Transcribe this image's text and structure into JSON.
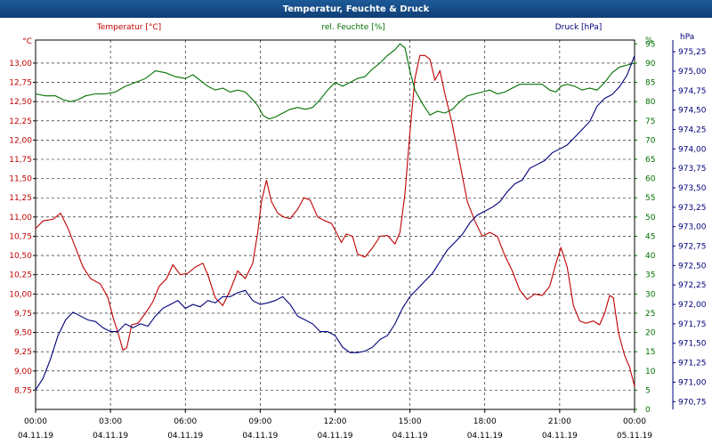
{
  "window": {
    "title": "Temperatur, Feuchte & Druck"
  },
  "chart_data": {
    "type": "line",
    "legend": "top",
    "grid": true,
    "x_ticks": [
      {
        "hours": 0,
        "time": "00:00",
        "date": "04.11.19"
      },
      {
        "hours": 3,
        "time": "03:00",
        "date": "04.11.19"
      },
      {
        "hours": 6,
        "time": "06:00",
        "date": "04.11.19"
      },
      {
        "hours": 9,
        "time": "09:00",
        "date": "04.11.19"
      },
      {
        "hours": 12,
        "time": "12:00",
        "date": "04.11.19"
      },
      {
        "hours": 15,
        "time": "15:00",
        "date": "04.11.19"
      },
      {
        "hours": 18,
        "time": "18:00",
        "date": "04.11.19"
      },
      {
        "hours": 21,
        "time": "21:00",
        "date": "04.11.19"
      },
      {
        "hours": 24,
        "time": "00:00",
        "date": "05.11.19"
      }
    ],
    "axes": {
      "temperature": {
        "unit": "°C",
        "range": [
          8.5,
          13.3
        ],
        "color": "#c00000",
        "ticks": [
          "8,75",
          "9,00",
          "9,25",
          "9,50",
          "9,75",
          "10,00",
          "10,25",
          "10,50",
          "10,75",
          "11,00",
          "11,25",
          "11,50",
          "11,75",
          "12,00",
          "12,25",
          "12,50",
          "12,75",
          "13,00"
        ]
      },
      "humidity": {
        "unit": "%",
        "range": [
          0,
          96
        ],
        "color": "#007000",
        "ticks": [
          "0",
          "5",
          "10",
          "15",
          "20",
          "25",
          "30",
          "35",
          "40",
          "45",
          "50",
          "55",
          "60",
          "65",
          "70",
          "75",
          "80",
          "85",
          "90",
          "95"
        ]
      },
      "pressure": {
        "unit": "hPa",
        "range": [
          970.65,
          975.4
        ],
        "color": "#00007a",
        "ticks": [
          "970,75",
          "971,00",
          "971,25",
          "971,50",
          "971,75",
          "972,00",
          "972,25",
          "972,50",
          "972,75",
          "973,00",
          "973,25",
          "973,50",
          "973,75",
          "974,00",
          "974,25",
          "974,50",
          "974,75",
          "975,00",
          "975,25"
        ]
      }
    },
    "series": [
      {
        "name": "Temperatur [°C]",
        "axis": "temperature",
        "color": "#c00000",
        "points": [
          [
            0,
            10.85
          ],
          [
            0.3,
            10.95
          ],
          [
            0.7,
            10.97
          ],
          [
            1,
            11.05
          ],
          [
            1.3,
            10.85
          ],
          [
            1.6,
            10.6
          ],
          [
            1.9,
            10.35
          ],
          [
            2.2,
            10.2
          ],
          [
            2.6,
            10.13
          ],
          [
            2.9,
            9.95
          ],
          [
            3.1,
            9.7
          ],
          [
            3.3,
            9.5
          ],
          [
            3.5,
            9.27
          ],
          [
            3.65,
            9.3
          ],
          [
            3.85,
            9.6
          ],
          [
            4.1,
            9.62
          ],
          [
            4.4,
            9.75
          ],
          [
            4.7,
            9.9
          ],
          [
            4.95,
            10.1
          ],
          [
            5.25,
            10.2
          ],
          [
            5.5,
            10.38
          ],
          [
            5.8,
            10.25
          ],
          [
            6.1,
            10.27
          ],
          [
            6.4,
            10.35
          ],
          [
            6.7,
            10.4
          ],
          [
            6.9,
            10.25
          ],
          [
            7.2,
            9.95
          ],
          [
            7.5,
            9.85
          ],
          [
            7.8,
            10.05
          ],
          [
            8.1,
            10.3
          ],
          [
            8.4,
            10.2
          ],
          [
            8.7,
            10.4
          ],
          [
            8.9,
            10.8
          ],
          [
            9.05,
            11.2
          ],
          [
            9.25,
            11.48
          ],
          [
            9.45,
            11.2
          ],
          [
            9.7,
            11.05
          ],
          [
            9.95,
            11
          ],
          [
            10.2,
            10.98
          ],
          [
            10.5,
            11.1
          ],
          [
            10.75,
            11.25
          ],
          [
            11,
            11.22
          ],
          [
            11.3,
            11
          ],
          [
            11.6,
            10.95
          ],
          [
            11.85,
            10.92
          ],
          [
            12.05,
            10.8
          ],
          [
            12.25,
            10.67
          ],
          [
            12.45,
            10.78
          ],
          [
            12.7,
            10.75
          ],
          [
            12.9,
            10.52
          ],
          [
            13.2,
            10.48
          ],
          [
            13.5,
            10.6
          ],
          [
            13.8,
            10.75
          ],
          [
            14.1,
            10.76
          ],
          [
            14.4,
            10.65
          ],
          [
            14.6,
            10.8
          ],
          [
            14.8,
            11.3
          ],
          [
            15.0,
            12.1
          ],
          [
            15.2,
            12.8
          ],
          [
            15.4,
            13.1
          ],
          [
            15.6,
            13.1
          ],
          [
            15.8,
            13.05
          ],
          [
            16,
            12.78
          ],
          [
            16.2,
            12.9
          ],
          [
            16.4,
            12.6
          ],
          [
            16.7,
            12.2
          ],
          [
            17,
            11.7
          ],
          [
            17.3,
            11.2
          ],
          [
            17.6,
            10.95
          ],
          [
            17.9,
            10.75
          ],
          [
            18.2,
            10.8
          ],
          [
            18.5,
            10.75
          ],
          [
            18.8,
            10.5
          ],
          [
            19.1,
            10.3
          ],
          [
            19.4,
            10.05
          ],
          [
            19.7,
            9.93
          ],
          [
            20.0,
            10.0
          ],
          [
            20.3,
            9.98
          ],
          [
            20.6,
            10.1
          ],
          [
            20.85,
            10.4
          ],
          [
            21.05,
            10.6
          ],
          [
            21.3,
            10.35
          ],
          [
            21.55,
            9.85
          ],
          [
            21.8,
            9.65
          ],
          [
            22.05,
            9.62
          ],
          [
            22.35,
            9.65
          ],
          [
            22.6,
            9.6
          ],
          [
            22.8,
            9.75
          ],
          [
            23.0,
            9.98
          ],
          [
            23.15,
            9.95
          ],
          [
            23.35,
            9.5
          ],
          [
            23.6,
            9.2
          ],
          [
            23.8,
            9.05
          ],
          [
            24,
            8.8
          ]
        ]
      },
      {
        "name": "rel. Feuchte [%]",
        "axis": "humidity",
        "color": "#007000",
        "points": [
          [
            0,
            82
          ],
          [
            0.4,
            81.5
          ],
          [
            0.8,
            81.5
          ],
          [
            1.1,
            80.5
          ],
          [
            1.4,
            80
          ],
          [
            1.7,
            80.5
          ],
          [
            2,
            81.5
          ],
          [
            2.4,
            82
          ],
          [
            2.8,
            82
          ],
          [
            3.2,
            82.5
          ],
          [
            3.6,
            84
          ],
          [
            4,
            85
          ],
          [
            4.4,
            86
          ],
          [
            4.8,
            88
          ],
          [
            5.2,
            87.5
          ],
          [
            5.6,
            86.5
          ],
          [
            6,
            86
          ],
          [
            6.3,
            87
          ],
          [
            6.6,
            85.5
          ],
          [
            6.9,
            84
          ],
          [
            7.2,
            83
          ],
          [
            7.5,
            83.5
          ],
          [
            7.8,
            82.5
          ],
          [
            8.1,
            83
          ],
          [
            8.4,
            82.5
          ],
          [
            8.7,
            80.5
          ],
          [
            8.9,
            79
          ],
          [
            9.1,
            76.5
          ],
          [
            9.35,
            75.5
          ],
          [
            9.6,
            76
          ],
          [
            9.9,
            77
          ],
          [
            10.2,
            78
          ],
          [
            10.5,
            78.5
          ],
          [
            10.8,
            78
          ],
          [
            11.1,
            78.5
          ],
          [
            11.4,
            80.5
          ],
          [
            11.7,
            83
          ],
          [
            12,
            85
          ],
          [
            12.3,
            84
          ],
          [
            12.6,
            85
          ],
          [
            12.9,
            86
          ],
          [
            13.2,
            86.5
          ],
          [
            13.5,
            88.5
          ],
          [
            13.8,
            90
          ],
          [
            14.1,
            92
          ],
          [
            14.4,
            93.5
          ],
          [
            14.6,
            95
          ],
          [
            14.8,
            94
          ],
          [
            15.0,
            88
          ],
          [
            15.2,
            83
          ],
          [
            15.5,
            79.5
          ],
          [
            15.8,
            76.5
          ],
          [
            16.1,
            77.5
          ],
          [
            16.4,
            77
          ],
          [
            16.7,
            78
          ],
          [
            17.0,
            80
          ],
          [
            17.3,
            81.5
          ],
          [
            17.6,
            82
          ],
          [
            17.9,
            82.5
          ],
          [
            18.2,
            83
          ],
          [
            18.5,
            82
          ],
          [
            18.8,
            82.5
          ],
          [
            19.1,
            83.5
          ],
          [
            19.4,
            84.5
          ],
          [
            19.7,
            84.5
          ],
          [
            20,
            84.5
          ],
          [
            20.3,
            84.5
          ],
          [
            20.6,
            83
          ],
          [
            20.85,
            82.5
          ],
          [
            21.05,
            84
          ],
          [
            21.3,
            84.5
          ],
          [
            21.6,
            84
          ],
          [
            21.9,
            83
          ],
          [
            22.2,
            83.5
          ],
          [
            22.5,
            83
          ],
          [
            22.8,
            85
          ],
          [
            23.1,
            87.5
          ],
          [
            23.4,
            89
          ],
          [
            23.7,
            89.5
          ],
          [
            24,
            90
          ]
        ]
      },
      {
        "name": "Druck [hPa]",
        "axis": "pressure",
        "color": "#00007a",
        "points": [
          [
            0,
            970.9
          ],
          [
            0.3,
            971.05
          ],
          [
            0.6,
            971.3
          ],
          [
            0.9,
            971.6
          ],
          [
            1.2,
            971.8
          ],
          [
            1.5,
            971.9
          ],
          [
            1.8,
            971.85
          ],
          [
            2.1,
            971.8
          ],
          [
            2.4,
            971.78
          ],
          [
            2.7,
            971.7
          ],
          [
            3.0,
            971.65
          ],
          [
            3.3,
            971.65
          ],
          [
            3.6,
            971.75
          ],
          [
            3.9,
            971.7
          ],
          [
            4.2,
            971.75
          ],
          [
            4.5,
            971.72
          ],
          [
            4.8,
            971.85
          ],
          [
            5.1,
            971.95
          ],
          [
            5.4,
            972.0
          ],
          [
            5.7,
            972.05
          ],
          [
            6.0,
            971.95
          ],
          [
            6.3,
            972.0
          ],
          [
            6.6,
            971.97
          ],
          [
            6.9,
            972.05
          ],
          [
            7.2,
            972.02
          ],
          [
            7.5,
            972.1
          ],
          [
            7.8,
            972.1
          ],
          [
            8.1,
            972.15
          ],
          [
            8.4,
            972.18
          ],
          [
            8.7,
            972.05
          ],
          [
            9.0,
            972.0
          ],
          [
            9.3,
            972.02
          ],
          [
            9.6,
            972.05
          ],
          [
            9.9,
            972.1
          ],
          [
            10.2,
            972.0
          ],
          [
            10.5,
            971.85
          ],
          [
            10.8,
            971.8
          ],
          [
            11.1,
            971.75
          ],
          [
            11.4,
            971.65
          ],
          [
            11.7,
            971.65
          ],
          [
            12.0,
            971.6
          ],
          [
            12.3,
            971.45
          ],
          [
            12.6,
            971.38
          ],
          [
            12.9,
            971.38
          ],
          [
            13.2,
            971.4
          ],
          [
            13.5,
            971.45
          ],
          [
            13.8,
            971.55
          ],
          [
            14.1,
            971.6
          ],
          [
            14.4,
            971.75
          ],
          [
            14.7,
            971.95
          ],
          [
            15.0,
            972.1
          ],
          [
            15.3,
            972.2
          ],
          [
            15.6,
            972.3
          ],
          [
            15.9,
            972.4
          ],
          [
            16.2,
            972.55
          ],
          [
            16.5,
            972.7
          ],
          [
            16.8,
            972.8
          ],
          [
            17.1,
            972.9
          ],
          [
            17.4,
            973.05
          ],
          [
            17.7,
            973.15
          ],
          [
            18.0,
            973.2
          ],
          [
            18.3,
            973.25
          ],
          [
            18.6,
            973.32
          ],
          [
            18.9,
            973.45
          ],
          [
            19.2,
            973.55
          ],
          [
            19.5,
            973.6
          ],
          [
            19.8,
            973.75
          ],
          [
            20.1,
            973.8
          ],
          [
            20.4,
            973.85
          ],
          [
            20.7,
            973.95
          ],
          [
            21.0,
            974.0
          ],
          [
            21.3,
            974.05
          ],
          [
            21.6,
            974.15
          ],
          [
            21.9,
            974.25
          ],
          [
            22.2,
            974.35
          ],
          [
            22.5,
            974.55
          ],
          [
            22.8,
            974.65
          ],
          [
            23.1,
            974.7
          ],
          [
            23.4,
            974.8
          ],
          [
            23.7,
            974.95
          ],
          [
            24,
            975.2
          ]
        ]
      }
    ]
  }
}
